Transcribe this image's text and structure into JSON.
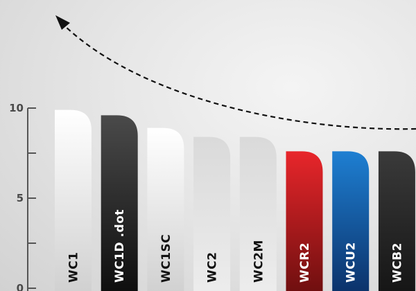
{
  "chart_data": {
    "type": "bar",
    "title": "",
    "xlabel": "",
    "ylabel": "",
    "categories": [
      "WC1",
      "WC1D .dot",
      "WC1SC",
      "WC2",
      "WC2M",
      "WCR2",
      "WCU2",
      "WCB2"
    ],
    "values": [
      9.9,
      9.6,
      8.9,
      8.4,
      8.4,
      7.6,
      7.6,
      7.6
    ],
    "ylim": [
      0,
      10
    ],
    "yticks": [
      {
        "value": 0,
        "label": "0"
      },
      {
        "value": 2.5,
        "label": ""
      },
      {
        "value": 5,
        "label": "5"
      },
      {
        "value": 7.5,
        "label": ""
      },
      {
        "value": 10,
        "label": "10"
      }
    ],
    "grid": false,
    "bar_fills": [
      {
        "top": "#ffffff",
        "bottom": "#cfcfcf",
        "text": "#111111"
      },
      {
        "top": "#4a4a4a",
        "bottom": "#0c0c0c",
        "text": "#ffffff"
      },
      {
        "top": "#ffffff",
        "bottom": "#cfcfcf",
        "text": "#111111"
      },
      {
        "top": "#dadada",
        "bottom": "#ededed",
        "text": "#111111"
      },
      {
        "top": "#dadada",
        "bottom": "#ededed",
        "text": "#111111"
      },
      {
        "top": "#e8262b",
        "bottom": "#6a0e0e",
        "text": "#ffffff"
      },
      {
        "top": "#1e7fd2",
        "bottom": "#0b2f66",
        "text": "#ffffff"
      },
      {
        "top": "#3a3a3a",
        "bottom": "#141414",
        "text": "#ffffff"
      }
    ],
    "axis_color": "#555555",
    "trend_arrow": {
      "color": "#111111",
      "style": "dashed"
    }
  }
}
